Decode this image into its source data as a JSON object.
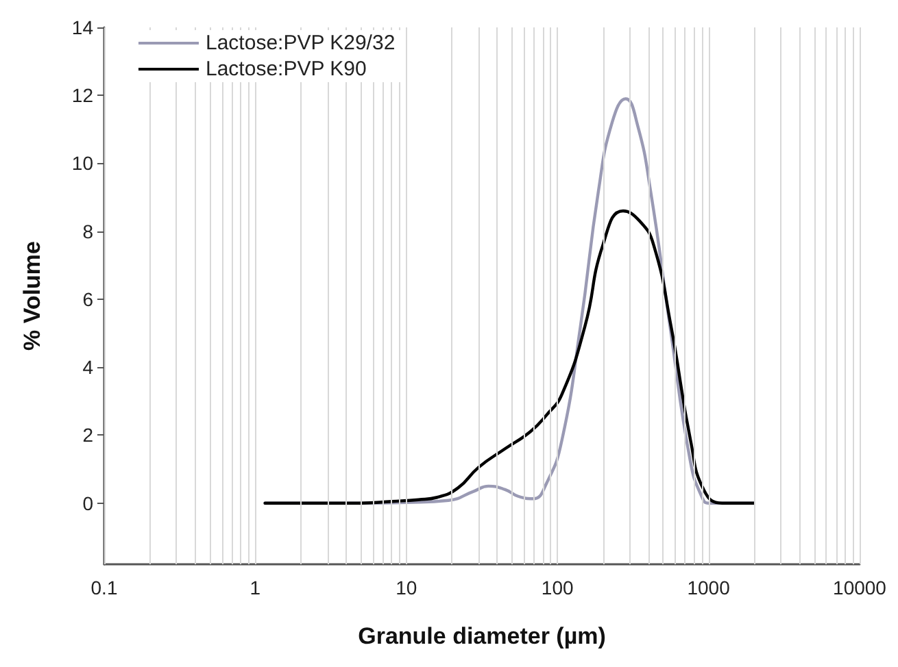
{
  "chart_data": {
    "type": "line",
    "xlabel": "Granule diameter (µm)",
    "ylabel": "% Volume",
    "log": "x",
    "grid": "x",
    "legend": "top left",
    "marker": "none",
    "line_style": "solid",
    "xlim": [
      0.1,
      10000
    ],
    "ylim": [
      -1.8,
      14
    ],
    "xticks": [
      0.1,
      {
        "value": 0.2,
        "label": null
      },
      {
        "value": 0.3,
        "label": null
      },
      {
        "value": 0.4,
        "label": null
      },
      {
        "value": 0.5,
        "label": null
      },
      {
        "value": 0.6,
        "label": null
      },
      {
        "value": 0.7,
        "label": null
      },
      {
        "value": 0.8,
        "label": null
      },
      {
        "value": 0.9,
        "label": null
      },
      1,
      {
        "value": 2,
        "label": null
      },
      {
        "value": 3,
        "label": null
      },
      {
        "value": 4,
        "label": null
      },
      {
        "value": 5,
        "label": null
      },
      {
        "value": 6,
        "label": null
      },
      {
        "value": 7,
        "label": null
      },
      {
        "value": 8,
        "label": null
      },
      {
        "value": 9,
        "label": null
      },
      10,
      {
        "value": 20,
        "label": null
      },
      {
        "value": 30,
        "label": null
      },
      {
        "value": 40,
        "label": null
      },
      {
        "value": 50,
        "label": null
      },
      {
        "value": 60,
        "label": null
      },
      {
        "value": 70,
        "label": null
      },
      {
        "value": 80,
        "label": null
      },
      {
        "value": 90,
        "label": null
      },
      100,
      {
        "value": 200,
        "label": null
      },
      {
        "value": 300,
        "label": null
      },
      {
        "value": 400,
        "label": null
      },
      {
        "value": 500,
        "label": null
      },
      {
        "value": 600,
        "label": null
      },
      {
        "value": 700,
        "label": null
      },
      {
        "value": 800,
        "label": null
      },
      {
        "value": 900,
        "label": null
      },
      1000,
      {
        "value": 2000,
        "label": null
      },
      {
        "value": 3000,
        "label": null
      },
      {
        "value": 4000,
        "label": null
      },
      {
        "value": 5000,
        "label": null
      },
      {
        "value": 6000,
        "label": null
      },
      {
        "value": 7000,
        "label": null
      },
      {
        "value": 8000,
        "label": null
      },
      {
        "value": 9000,
        "label": null
      },
      10000
    ],
    "yticks": [
      0,
      2,
      4,
      6,
      8,
      10,
      12,
      14
    ],
    "series": [
      {
        "name": "Lactose:PVP K29/32",
        "color": "#9a9ab4",
        "x": [
          1.16,
          5,
          10,
          19,
          28,
          35,
          45,
          55,
          69,
          85,
          107,
          142,
          187,
          230,
          283,
          340,
          413,
          556,
          760,
          900,
          1000,
          2000
        ],
        "values": [
          0,
          0,
          0.02,
          0.08,
          0.35,
          0.5,
          0.4,
          0.2,
          0.13,
          0.6,
          1.85,
          5.2,
          9.2,
          11.2,
          11.9,
          11.1,
          9.2,
          5.2,
          1.2,
          0.2,
          0,
          0
        ]
      },
      {
        "name": "Lactose:PVP K90",
        "color": "#000000",
        "x": [
          1.16,
          5,
          8,
          12,
          16,
          22,
          30,
          45,
          66,
          85,
          107,
          152,
          200,
          272,
          350,
          433,
          565,
          760,
          935,
          1230,
          2000
        ],
        "values": [
          0,
          0,
          0.05,
          0.1,
          0.17,
          0.45,
          1.05,
          1.6,
          2.1,
          2.6,
          3.2,
          5.2,
          7.6,
          8.6,
          8.3,
          7.6,
          5.2,
          1.85,
          0.37,
          0,
          0
        ]
      }
    ]
  }
}
